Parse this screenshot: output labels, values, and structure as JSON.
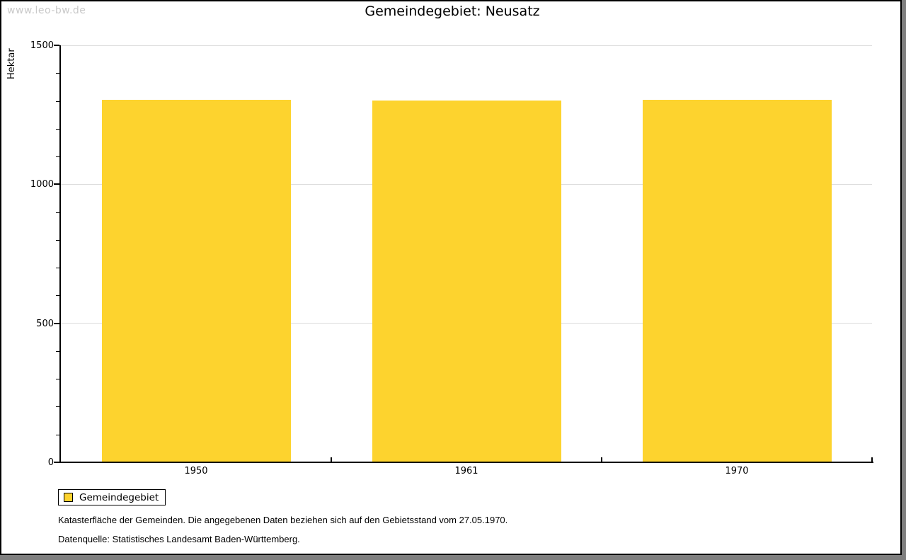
{
  "watermark": "www.leo-bw.de",
  "title": "Gemeindegebiet: Neusatz",
  "chart_data": {
    "type": "bar",
    "title": "Gemeindegebiet: Neusatz",
    "categories": [
      "1950",
      "1961",
      "1970"
    ],
    "values": [
      1305,
      1301,
      1304
    ],
    "xlabel": "",
    "ylabel": "Hektar",
    "ylim": [
      0,
      1500
    ],
    "yticks": [
      0,
      500,
      1000,
      1500
    ],
    "minor_tick_step": 100,
    "grid": true,
    "legend_position": "bottom-left",
    "bar_color": "#fdd32e",
    "gridline_color": "#dddddd"
  },
  "legend": {
    "label": "Gemeindegebiet",
    "swatch_color": "#fdd32e"
  },
  "footnotes": [
    "Katasterfläche der Gemeinden. Die angegebenen Daten beziehen sich auf den Gebietsstand vom 27.05.1970.",
    "Datenquelle: Statistisches Landesamt Baden-Württemberg."
  ],
  "colors": {
    "bar": "#fdd32e",
    "gridline": "#dddddd",
    "axis": "#000000",
    "watermark": "#c9c9c9",
    "outer_shadow": "#7f7f7f"
  }
}
